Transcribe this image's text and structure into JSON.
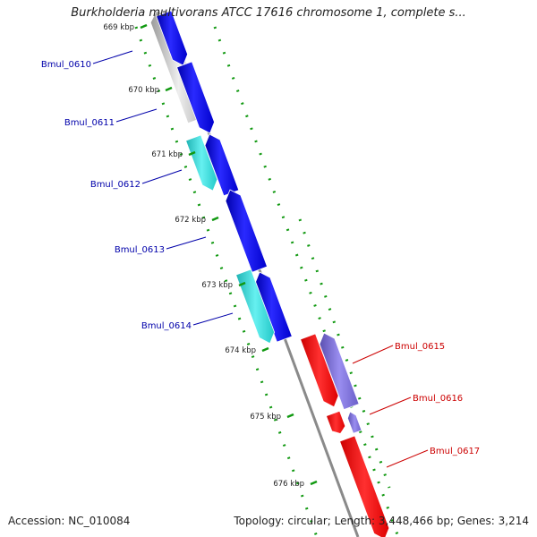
{
  "title": "Burkholderia multivorans ATCC 17616 chromosome 1, complete s...",
  "footer": {
    "accession": "Accession: NC_010084",
    "topology": "Topology: circular; Length: 3,448,466 bp; Genes: 3,214"
  },
  "ruler_labels": [
    "669 kbp",
    "670 kbp",
    "671 kbp",
    "672 kbp",
    "673 kbp",
    "674 kbp",
    "675 kbp",
    "676 kbp"
  ],
  "genes_left": [
    "Bmul_0610",
    "Bmul_0611",
    "Bmul_0612",
    "Bmul_0613",
    "Bmul_0614"
  ],
  "genes_right": [
    "Bmul_0615",
    "Bmul_0616",
    "Bmul_0617"
  ],
  "colors": {
    "forward_cds": "#0000ee",
    "forward_other": "#22cccc",
    "reverse_cds": "#ee0000",
    "reverse_other": "#7766cc",
    "label_left": "#0000aa",
    "label_right": "#cc0000",
    "backbone": "#888888",
    "ruler_dots": "#119911"
  }
}
